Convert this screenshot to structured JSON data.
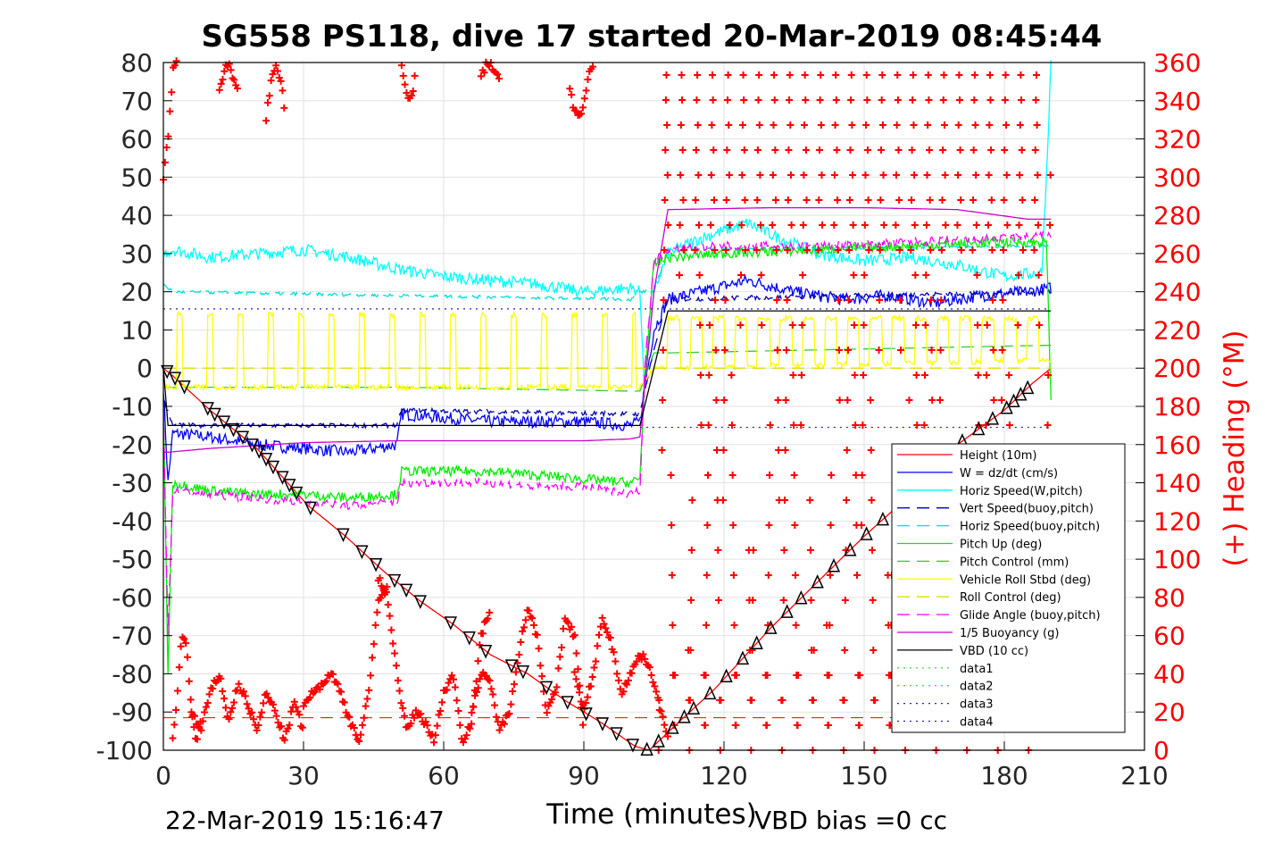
{
  "chart_data": {
    "type": "line",
    "title": "SG558 PS118, dive 17 started 20-Mar-2019 08:45:44",
    "xlabel": "Time (minutes)",
    "ylabel_right": "(+) Heading (°M)",
    "xlim": [
      0,
      210
    ],
    "ylim": [
      -100,
      80
    ],
    "ylim_right": [
      0,
      360
    ],
    "x_ticks": [
      "0",
      "30",
      "60",
      "90",
      "120",
      "150",
      "180",
      "210"
    ],
    "y_ticks": [
      "80",
      "70",
      "60",
      "50",
      "40",
      "30",
      "20",
      "10",
      "0",
      "-10",
      "-20",
      "-30",
      "-40",
      "-50",
      "-60",
      "-70",
      "-80",
      "-90",
      "-100"
    ],
    "y_right_ticks": [
      "360",
      "340",
      "320",
      "300",
      "280",
      "260",
      "240",
      "220",
      "200",
      "180",
      "160",
      "140",
      "120",
      "100",
      "80",
      "60",
      "40",
      "20",
      "0"
    ],
    "grid": true,
    "legend_position": "lower-right",
    "footer_left": "22-Mar-2019 15:16:47",
    "footer_right": "VBD bias =0 cc",
    "colors": {
      "height": "#ff0000",
      "w": "#0000ff",
      "horiz_w": "#00ffff",
      "vert_buoy": "#0000aa",
      "horiz_buoy": "#00dddd",
      "pitch": "#00ee00",
      "pitch_ctl": "#33cc33",
      "roll": "#ffff00",
      "roll_ctl": "#dddd00",
      "glide": "#ff00ff",
      "buoy": "#cc00cc",
      "vbd": "#000000",
      "data12": "#44dd44",
      "data34": "#2222aa",
      "heading": "#ff0000"
    },
    "series": [
      {
        "name": "Height (10m)",
        "key": "height",
        "style": "solid",
        "x": [
          0,
          2,
          10,
          20,
          31,
          39,
          47,
          55,
          62,
          70,
          78,
          86,
          94,
          101,
          104,
          110,
          118,
          130,
          140,
          150,
          160,
          170,
          180,
          186,
          190
        ],
        "y": [
          0,
          -2,
          -11,
          -21,
          -36,
          -44,
          -53,
          -61,
          -67,
          -75,
          -80,
          -87,
          -93,
          -99,
          -100,
          -93,
          -84,
          -68,
          -56,
          -44,
          -33,
          -20,
          -11,
          -4,
          0
        ]
      },
      {
        "name": "W = dz/dt (cm/s)",
        "key": "w",
        "style": "solid",
        "x": [
          0,
          1,
          2,
          10,
          20,
          30,
          40,
          50,
          51,
          60,
          70,
          80,
          90,
          100,
          102,
          103,
          105,
          108,
          115,
          125,
          135,
          145,
          155,
          165,
          175,
          185,
          190
        ],
        "y": [
          -5,
          -30,
          -17,
          -18,
          -20,
          -21,
          -22,
          -20,
          -12,
          -13,
          -14,
          -14,
          -14,
          -15,
          -14,
          -5,
          10,
          18,
          20,
          23,
          20,
          18,
          19,
          17,
          19,
          20,
          21
        ],
        "noise": 1.6
      },
      {
        "name": "Horiz Speed(W,pitch)",
        "key": "horiz_w",
        "style": "solid",
        "x": [
          0,
          2,
          10,
          20,
          30,
          40,
          50,
          60,
          70,
          80,
          90,
          100,
          102,
          103,
          105,
          108,
          115,
          125,
          130,
          140,
          150,
          160,
          170,
          180,
          188,
          189,
          190
        ],
        "y": [
          30,
          31,
          29,
          30,
          31,
          29,
          26,
          24,
          23,
          22,
          20,
          21,
          20,
          -5,
          20,
          30,
          34,
          38,
          35,
          30,
          28,
          29,
          27,
          24,
          25,
          50,
          80
        ],
        "noise": 1.6
      },
      {
        "name": "Vert Speed(buoy,pitch)",
        "key": "vert_buoy",
        "style": "dashed",
        "x": [
          0,
          2,
          50,
          51,
          100,
          102,
          105,
          108,
          190
        ],
        "y": [
          -8,
          -15,
          -15,
          -11,
          -12,
          -12,
          5,
          18,
          20
        ],
        "noise": 0.6
      },
      {
        "name": "Horiz Speed(buoy,pitch)",
        "key": "horiz_buoy",
        "style": "dashed",
        "x": [
          0,
          2,
          50,
          100,
          102,
          105,
          108,
          190
        ],
        "y": [
          22,
          20,
          19,
          18,
          20,
          20,
          31,
          32
        ],
        "noise": 0.4
      },
      {
        "name": "Pitch Up (deg)",
        "key": "pitch",
        "style": "solid",
        "x": [
          0,
          1,
          2,
          10,
          20,
          30,
          40,
          50,
          51,
          60,
          70,
          80,
          90,
          100,
          102,
          103,
          105,
          108,
          120,
          140,
          160,
          180,
          189,
          190
        ],
        "y": [
          -10,
          -80,
          -30,
          -32,
          -33,
          -33,
          -34,
          -33,
          -27,
          -27,
          -27,
          -28,
          -29,
          -30,
          -29,
          -3,
          27,
          29,
          30,
          31,
          32,
          33,
          33,
          -8
        ],
        "noise": 1.3
      },
      {
        "name": "Pitch Control (mm)",
        "key": "pitch_ctl",
        "style": "dashed",
        "x": [
          0,
          2,
          50,
          51,
          100,
          102,
          105,
          108,
          190
        ],
        "y": [
          -5,
          -5,
          -5,
          -5,
          -6,
          -6,
          4,
          4,
          6
        ]
      },
      {
        "name": "Vehicle Roll Stbd (deg)",
        "key": "roll",
        "style": "solid",
        "x": [
          0,
          2,
          100,
          102,
          105,
          190
        ],
        "y": [
          -5,
          -5,
          -5,
          -5,
          0,
          2
        ],
        "pulses": {
          "down": {
            "x0": 3,
            "x1": 101,
            "period": 6.5,
            "low": -5,
            "high": 14,
            "width": 1.2
          },
          "up": {
            "x0": 108,
            "x1": 189,
            "period": 4.8,
            "low": -4,
            "high": 13,
            "width": 2.6
          }
        },
        "noise": 0.7
      },
      {
        "name": "Roll Control (deg)",
        "key": "roll_ctl",
        "style": "dashed",
        "x": [
          0,
          2,
          100,
          102,
          105,
          108,
          190
        ],
        "y": [
          0,
          0,
          0,
          0,
          0,
          0,
          0
        ]
      },
      {
        "name": "Glide Angle (buoy,pitch)",
        "key": "glide",
        "style": "dashed",
        "x": [
          0,
          1,
          2,
          10,
          20,
          30,
          40,
          50,
          51,
          60,
          70,
          80,
          90,
          100,
          102,
          103,
          105,
          108,
          120,
          140,
          160,
          180,
          190
        ],
        "y": [
          -10,
          -70,
          -32,
          -33,
          -34,
          -35,
          -36,
          -35,
          -30,
          -30,
          -30,
          -31,
          -31,
          -33,
          -32,
          0,
          28,
          31,
          32,
          32,
          33,
          34,
          35
        ],
        "noise": 1.1
      },
      {
        "name": "1/5 Buoyancy (g)",
        "key": "buoy",
        "style": "solid",
        "x": [
          0,
          1,
          10,
          30,
          50,
          70,
          90,
          100,
          102,
          105,
          108,
          130,
          150,
          170,
          185,
          190
        ],
        "y": [
          -22,
          -22,
          -21,
          -19.5,
          -19,
          -19,
          -19,
          -18.5,
          -18,
          20,
          41.5,
          42,
          42,
          41.5,
          39,
          39
        ]
      },
      {
        "name": "VBD (10 cc)",
        "key": "vbd",
        "style": "solid",
        "x": [
          0,
          1,
          100,
          102,
          105,
          108,
          190
        ],
        "y": [
          0,
          -15,
          -15,
          -15,
          0,
          15,
          15
        ]
      },
      {
        "name": "data1",
        "key": "data12",
        "style": "dotted",
        "x": [],
        "y": []
      },
      {
        "name": "data2",
        "key": "data12",
        "style": "dotted",
        "x": [],
        "y": []
      },
      {
        "name": "data3",
        "key": "data34",
        "style": "dotted",
        "x": [
          0,
          190
        ],
        "y": [
          15.5,
          15.5
        ]
      },
      {
        "name": "data4",
        "key": "data34",
        "style": "dotted",
        "x": [
          102,
          190
        ],
        "y": [
          -15.5,
          -15.5
        ]
      }
    ],
    "reference_lines": [
      {
        "key": "heading",
        "style": "dashed",
        "axis": "right",
        "value": 17,
        "x": [
          0,
          190
        ]
      }
    ],
    "heading_series": {
      "axis": "right",
      "segments": [
        {
          "x": [
            0,
            1,
            2,
            3
          ],
          "y": [
            300,
            320,
            355,
            360
          ]
        },
        {
          "x": [
            2,
            3,
            4,
            5,
            6,
            7,
            8
          ],
          "y": [
            5,
            30,
            60,
            55,
            20,
            5,
            15
          ]
        },
        {
          "x": [
            6,
            8,
            10,
            12,
            14,
            16,
            18,
            20,
            22,
            24,
            26,
            28,
            30
          ],
          "y": [
            20,
            10,
            30,
            40,
            15,
            35,
            25,
            10,
            30,
            20,
            5,
            25,
            10
          ]
        },
        {
          "x": [
            12,
            13,
            14,
            15,
            16
          ],
          "y": [
            345,
            355,
            360,
            350,
            345
          ]
        },
        {
          "x": [
            22,
            23,
            24,
            25,
            26
          ],
          "y": [
            330,
            350,
            360,
            352,
            335
          ]
        },
        {
          "x": [
            30,
            32,
            34,
            36,
            38,
            40,
            42,
            44,
            46,
            48
          ],
          "y": [
            25,
            30,
            35,
            40,
            30,
            15,
            5,
            30,
            80,
            85
          ]
        },
        {
          "x": [
            46,
            48,
            50,
            52,
            54,
            56,
            58,
            60,
            62,
            64,
            66,
            68,
            70
          ],
          "y": [
            90,
            80,
            40,
            10,
            20,
            15,
            5,
            30,
            40,
            5,
            15,
            60,
            75
          ]
        },
        {
          "x": [
            66,
            68,
            70,
            72,
            74,
            76,
            78,
            80,
            82,
            84,
            86,
            88,
            90
          ],
          "y": [
            20,
            40,
            35,
            10,
            20,
            50,
            75,
            60,
            20,
            30,
            70,
            60,
            10
          ]
        },
        {
          "x": [
            88,
            90,
            92,
            94,
            96,
            98,
            100,
            102,
            104,
            106,
            108
          ],
          "y": [
            40,
            20,
            40,
            70,
            55,
            30,
            40,
            50,
            45,
            25,
            5
          ]
        },
        {
          "x": [
            51,
            52,
            53,
            54
          ],
          "y": [
            360,
            345,
            340,
            355
          ]
        },
        {
          "x": [
            68,
            69,
            70,
            71,
            72
          ],
          "y": [
            352,
            358,
            360,
            355,
            350
          ]
        },
        {
          "x": [
            87,
            88,
            89,
            90,
            91,
            92
          ],
          "y": [
            345,
            335,
            330,
            340,
            352,
            360
          ]
        }
      ],
      "up_oscillation": {
        "x0": 106,
        "x1": 190,
        "period": 3.3,
        "low": 0,
        "high": 360
      }
    }
  }
}
